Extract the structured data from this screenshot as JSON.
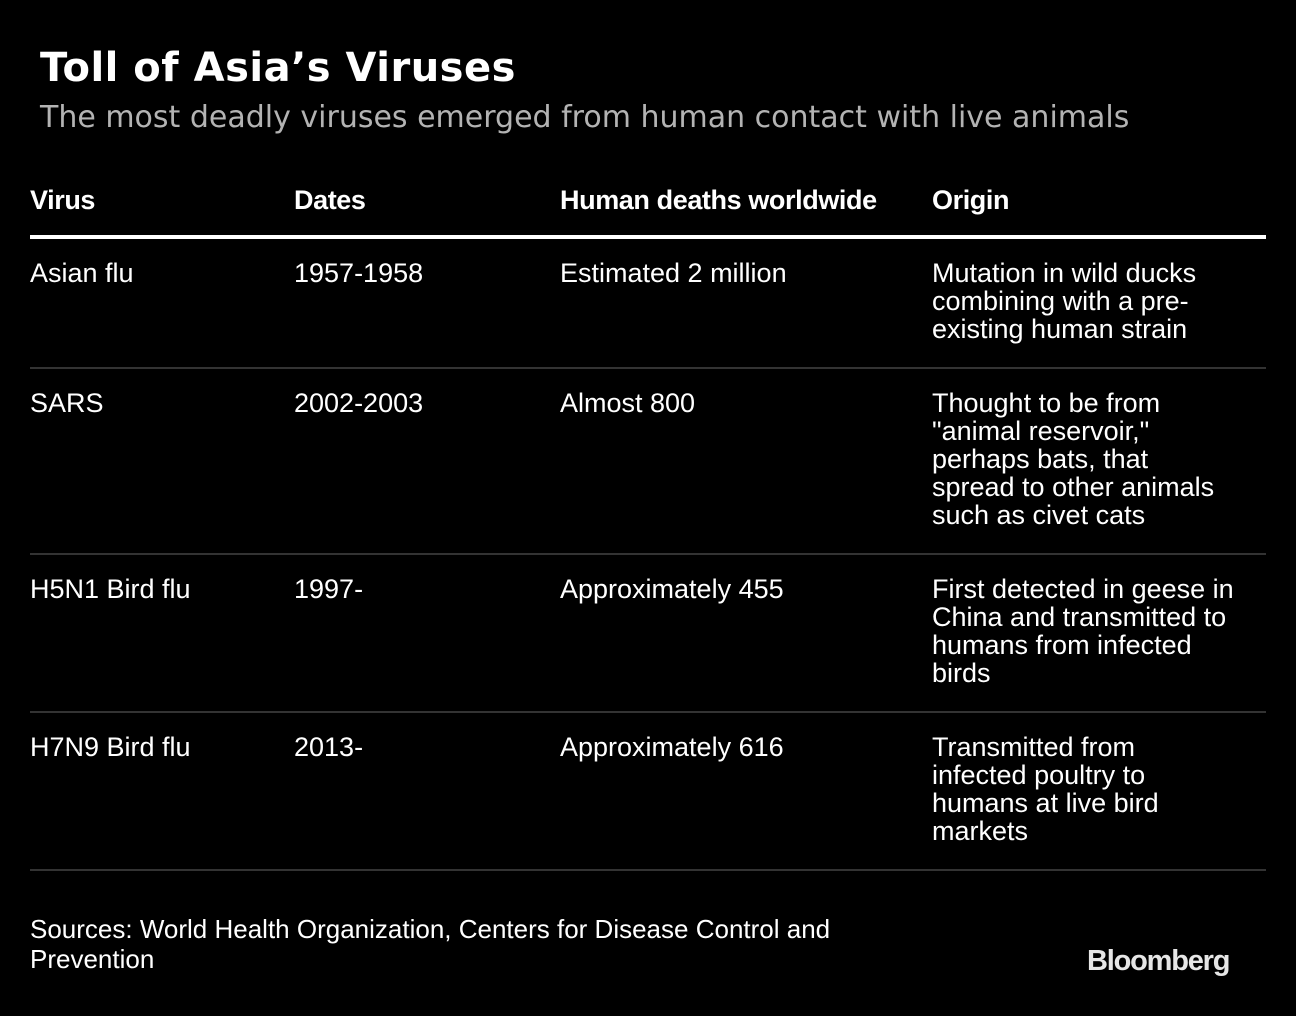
{
  "title": "Toll of Asia’s Viruses",
  "subtitle": "The most deadly viruses emerged from human contact with live animals",
  "chart_data": {
    "type": "table",
    "title": "Toll of Asia’s Viruses",
    "subtitle": "The most deadly viruses emerged from human contact with live animals",
    "columns": [
      "Virus",
      "Dates",
      "Human deaths worldwide",
      "Origin"
    ],
    "rows": [
      {
        "virus": "Asian flu",
        "dates": "1957-1958",
        "deaths": "Estimated 2 million",
        "origin": "Mutation in wild ducks\ncombining with a pre-\nexisting human strain"
      },
      {
        "virus": "SARS",
        "dates": "2002-2003",
        "deaths": "Almost 800",
        "origin": "Thought to be from\n\"animal reservoir,\"\nperhaps bats, that\nspread to other animals\nsuch as civet cats"
      },
      {
        "virus": "H5N1 Bird flu",
        "dates": "1997-",
        "deaths": "Approximately 455",
        "origin": "First detected in geese in\nChina and transmitted to\nhumans from infected\nbirds"
      },
      {
        "virus": "H7N9 Bird flu",
        "dates": "2013-",
        "deaths": "Approximately 616",
        "origin": "Transmitted from\ninfected poultry to\nhumans at live bird\nmarkets"
      }
    ]
  },
  "footer": {
    "sources": "Sources: World Health Organization, Centers for Disease Control and\nPrevention",
    "logo": "Bloomberg"
  },
  "colors": {
    "background": "#000000",
    "text": "#ffffff",
    "subtitle": "#b3b3b3",
    "divider": "#333333"
  }
}
